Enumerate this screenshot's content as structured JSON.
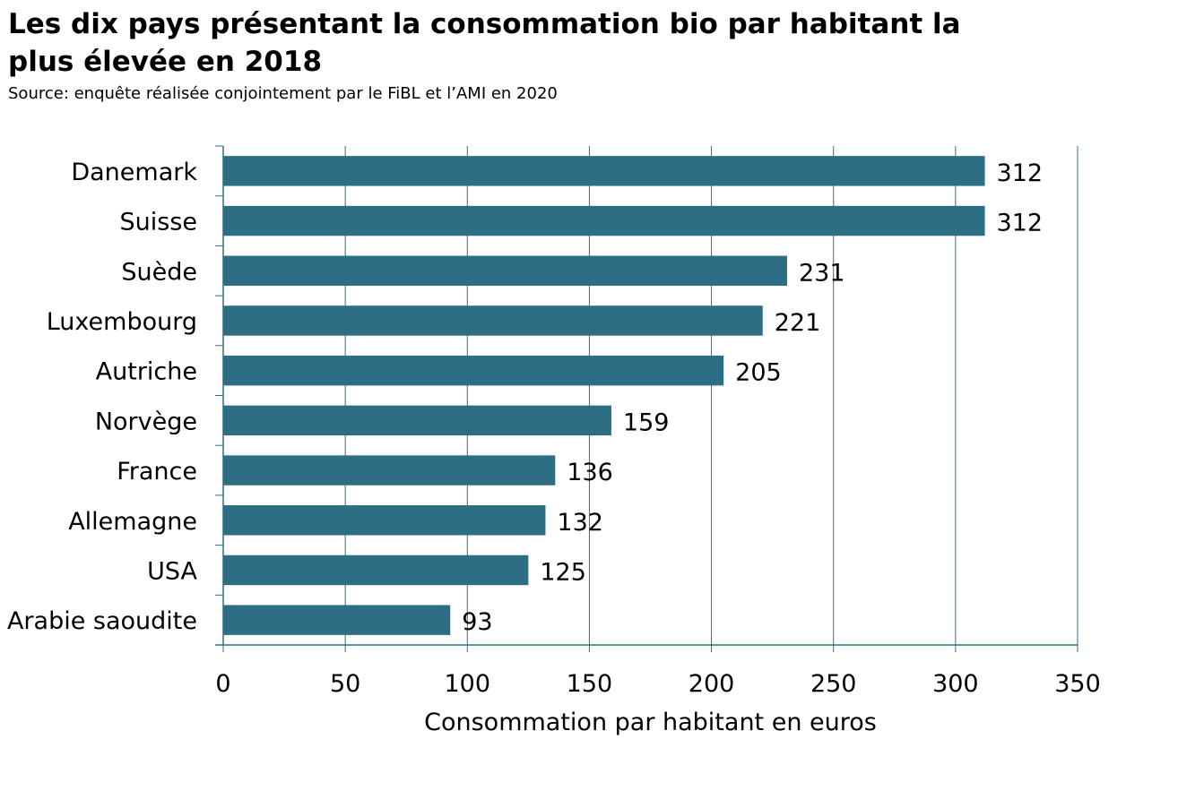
{
  "title": "Les dix pays présentant la consommation bio par habitant la plus élevée en 2018",
  "subtitle": "Source: enquête réalisée conjointement par le FiBL et l’AMI en 2020",
  "chart_data": {
    "type": "bar",
    "orientation": "horizontal",
    "title": "Les dix pays présentant la consommation bio par habitant la plus élevée en 2018",
    "subtitle": "Source: enquête réalisée conjointement par le FiBL et l’AMI en 2020",
    "categories": [
      "Danemark",
      "Suisse",
      "Suède",
      "Luxembourg",
      "Autriche",
      "Norvège",
      "France",
      "Allemagne",
      "USA",
      "Arabie saoudite"
    ],
    "values": [
      312,
      312,
      231,
      221,
      205,
      159,
      136,
      132,
      125,
      93
    ],
    "data_labels": [
      "312",
      "312",
      "231",
      "221",
      "205",
      "159",
      "136",
      "132",
      "125",
      "93"
    ],
    "xlabel": "Consommation par habitant en euros",
    "ylabel": "",
    "xlim": [
      0,
      350
    ],
    "xticks": [
      0,
      50,
      100,
      150,
      200,
      250,
      300,
      350
    ],
    "xtick_labels": [
      "0",
      "50",
      "100",
      "150",
      "200",
      "250",
      "300",
      "350"
    ],
    "grid": "vertical",
    "legend": "none",
    "bar_color": "#2e6e85",
    "grid_color": "#2e6e85"
  }
}
